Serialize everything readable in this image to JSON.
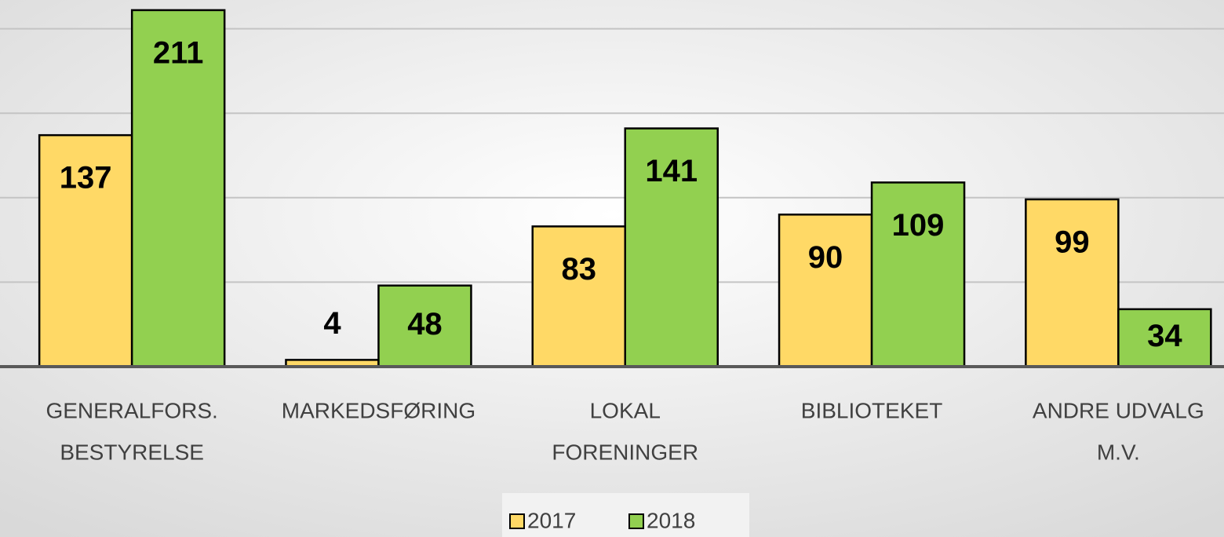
{
  "chart_data": {
    "type": "bar",
    "categories": [
      [
        "GENERALFORS.",
        "BESTYRELSE"
      ],
      [
        "MARKEDSFØRING"
      ],
      [
        "LOKAL",
        "FORENINGER"
      ],
      [
        "BIBLIOTEKET"
      ],
      [
        "ANDRE UDVALG",
        "M.V."
      ]
    ],
    "series": [
      {
        "name": "2017",
        "color": "#FFD966",
        "values": [
          137,
          4,
          83,
          90,
          99
        ]
      },
      {
        "name": "2018",
        "color": "#92D050",
        "values": [
          211,
          48,
          141,
          109,
          34
        ]
      }
    ],
    "ylim": [
      0,
      217
    ],
    "yticks": [
      0,
      50,
      100,
      150,
      200
    ],
    "grid": true,
    "legend": "bottom"
  }
}
